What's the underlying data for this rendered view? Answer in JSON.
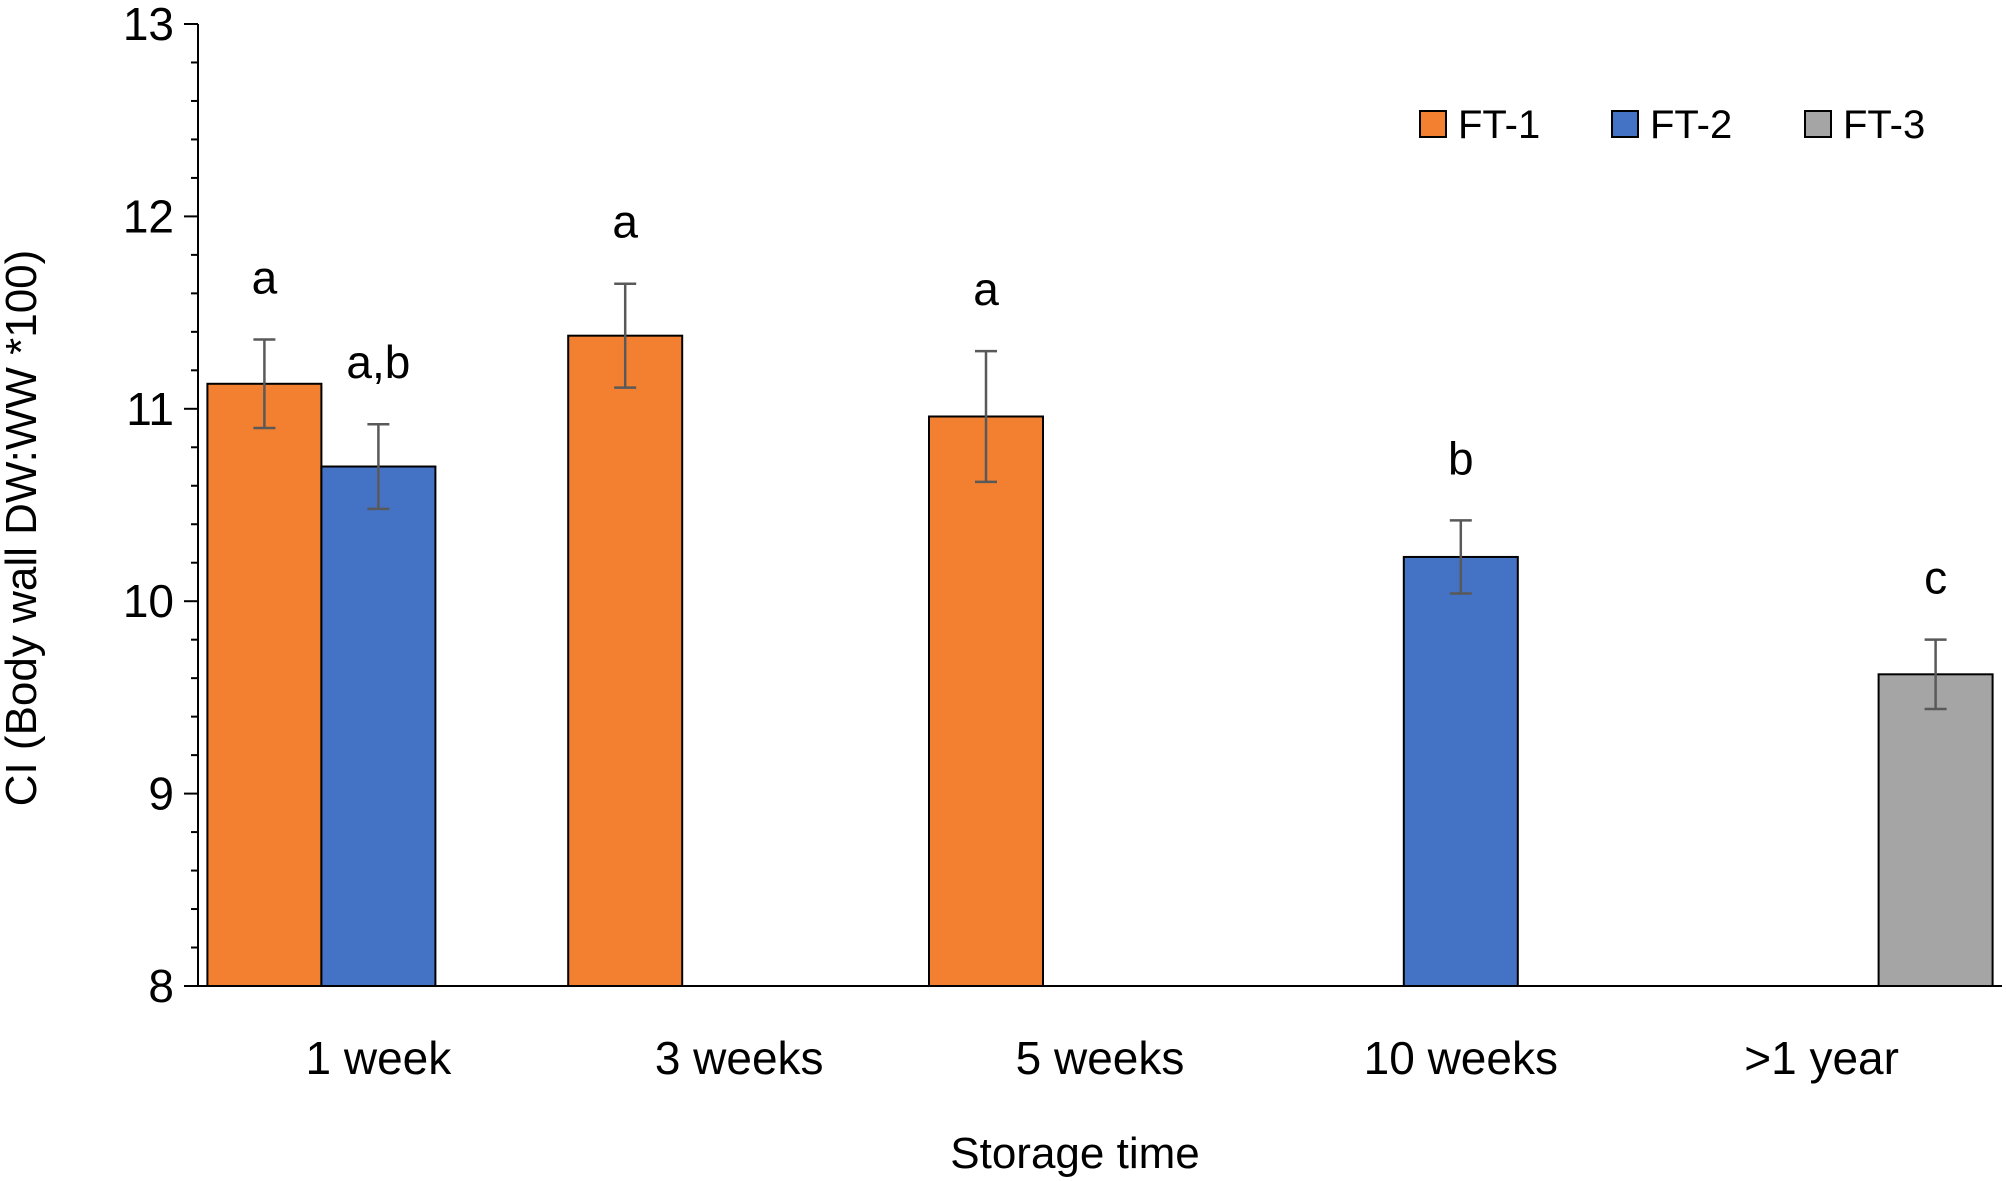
{
  "chart_data": {
    "type": "bar",
    "title": "",
    "xlabel": "Storage time",
    "ylabel": "CI (Body wall DW:WW *100)",
    "ylim": [
      8,
      13
    ],
    "yticks": [
      "8",
      "9",
      "10",
      "11",
      "12",
      "13"
    ],
    "minor_tick_step": 0.2,
    "categories": [
      "1 week",
      "3 weeks",
      "5 weeks",
      "10 weeks",
      ">1 year"
    ],
    "legend_position": "top-right",
    "series": [
      {
        "name": "FT-1",
        "color": "#F28030"
      },
      {
        "name": "FT-2",
        "color": "#4472C4"
      },
      {
        "name": "FT-3",
        "color": "#A5A5A5"
      }
    ],
    "bars": [
      {
        "category": "1 week",
        "series": "FT-1",
        "value": 11.13,
        "error": 0.23,
        "label": "a"
      },
      {
        "category": "1 week",
        "series": "FT-2",
        "value": 10.7,
        "error": 0.22,
        "label": "a,b"
      },
      {
        "category": "3 weeks",
        "series": "FT-1",
        "value": 11.38,
        "error": 0.27,
        "label": "a"
      },
      {
        "category": "5 weeks",
        "series": "FT-1",
        "value": 10.96,
        "error": 0.34,
        "label": "a"
      },
      {
        "category": "10 weeks",
        "series": "FT-2",
        "value": 10.23,
        "error": 0.19,
        "label": "b"
      },
      {
        "category": ">1 year",
        "series": "FT-3",
        "value": 9.62,
        "error": 0.18,
        "label": "c"
      }
    ],
    "grid": false
  }
}
